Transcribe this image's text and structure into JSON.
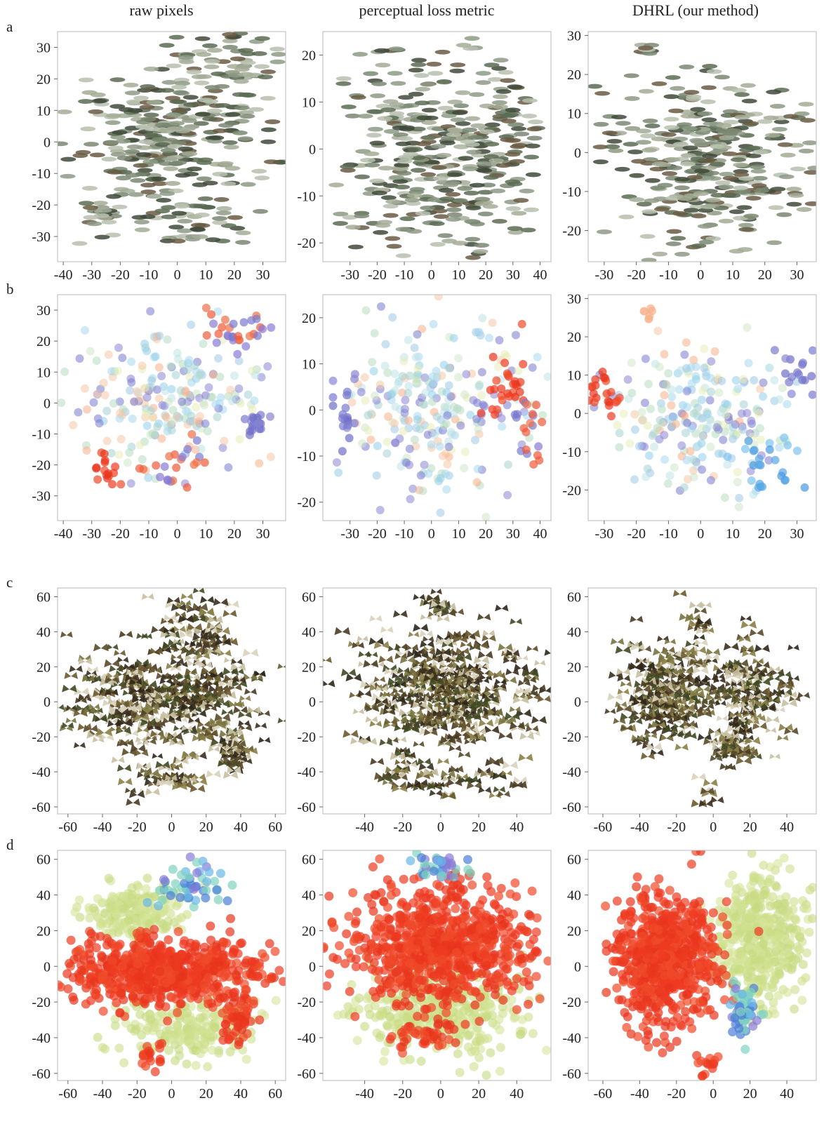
{
  "columns": [
    "raw pixels",
    "perceptual loss metric",
    "DHRL (our method)"
  ],
  "rows": [
    "a",
    "b",
    "c",
    "d"
  ],
  "colors": {
    "accent_red": "#ee3a22",
    "accent_lime": "#cfe08c",
    "accent_purple": "#7a7ad0",
    "accent_teal": "#7fd3c0",
    "accent_blue": "#4a7fd6",
    "image_dark": "#3d3a2a"
  },
  "chart_data": [
    {
      "id": "a1",
      "row": "a",
      "col": 0,
      "type": "scatter",
      "render": "images-fish",
      "xticks": [
        "-40",
        "-30",
        "-20",
        "-10",
        "0",
        "10",
        "20",
        "30"
      ],
      "yticks": [
        "30",
        "20",
        "10",
        "0",
        "-10",
        "-20",
        "-30"
      ],
      "xlim": [
        -42,
        38
      ],
      "ylim": [
        -38,
        35
      ],
      "clusters": [
        {
          "cx": -3,
          "cy": 3,
          "sx": 17,
          "sy": 13,
          "n": 320
        },
        {
          "cx": -25,
          "cy": -22,
          "sx": 4,
          "sy": 3,
          "n": 25
        },
        {
          "cx": 5,
          "cy": -25,
          "sx": 8,
          "sy": 4,
          "n": 40
        },
        {
          "cx": 20,
          "cy": 25,
          "sx": 8,
          "sy": 4,
          "n": 40
        }
      ]
    },
    {
      "id": "a2",
      "row": "a",
      "col": 1,
      "type": "scatter",
      "render": "images-fish",
      "xticks": [
        "-30",
        "-20",
        "-10",
        "0",
        "10",
        "20",
        "30",
        "40"
      ],
      "yticks": [
        "20",
        "10",
        "0",
        "-10",
        "-20"
      ],
      "xlim": [
        -40,
        44
      ],
      "ylim": [
        -24,
        25
      ],
      "clusters": [
        {
          "cx": 0,
          "cy": 0,
          "sx": 17,
          "sy": 11,
          "n": 380
        },
        {
          "cx": 32,
          "cy": 3,
          "sx": 5,
          "sy": 8,
          "n": 40
        }
      ]
    },
    {
      "id": "a3",
      "row": "a",
      "col": 2,
      "type": "scatter",
      "render": "images-fish",
      "xticks": [
        "-30",
        "-20",
        "-10",
        "0",
        "10",
        "20",
        "30"
      ],
      "yticks": [
        "30",
        "20",
        "10",
        "0",
        "-10",
        "-20"
      ],
      "xlim": [
        -35,
        36
      ],
      "ylim": [
        -28,
        31
      ],
      "clusters": [
        {
          "cx": 2,
          "cy": -2,
          "sx": 15,
          "sy": 11,
          "n": 360
        },
        {
          "cx": -16,
          "cy": 27,
          "sx": 1.5,
          "sy": 1.2,
          "n": 8
        }
      ]
    },
    {
      "id": "b1",
      "row": "b",
      "col": 0,
      "type": "scatter",
      "render": "dots",
      "xticks": [
        "-40",
        "-30",
        "-20",
        "-10",
        "0",
        "10",
        "20",
        "30"
      ],
      "yticks": [
        "30",
        "20",
        "10",
        "0",
        "-10",
        "-20",
        "-30"
      ],
      "xlim": [
        -42,
        38
      ],
      "ylim": [
        -38,
        35
      ],
      "clusters": [
        {
          "cx": -2,
          "cy": 2,
          "sx": 16,
          "sy": 11,
          "n": 230,
          "pal": "mix"
        },
        {
          "cx": -25,
          "cy": -22,
          "sx": 3,
          "sy": 2.5,
          "n": 16,
          "pal": "red"
        },
        {
          "cx": 20,
          "cy": 22,
          "sx": 7,
          "sy": 4,
          "n": 30,
          "pal": "redpurple"
        },
        {
          "cx": 28,
          "cy": -6,
          "sx": 3,
          "sy": 3,
          "n": 18,
          "pal": "purple"
        },
        {
          "cx": 0,
          "cy": -22,
          "sx": 5,
          "sy": 4,
          "n": 22,
          "pal": "redpurple"
        }
      ]
    },
    {
      "id": "b2",
      "row": "b",
      "col": 1,
      "type": "scatter",
      "render": "dots",
      "xticks": [
        "-30",
        "-20",
        "-10",
        "0",
        "10",
        "20",
        "30",
        "40"
      ],
      "yticks": [
        "20",
        "10",
        "0",
        "-10",
        "-20"
      ],
      "xlim": [
        -40,
        44
      ],
      "ylim": [
        -24,
        25
      ],
      "clusters": [
        {
          "cx": 0,
          "cy": 0,
          "sx": 17,
          "sy": 10,
          "n": 260,
          "pal": "mix"
        },
        {
          "cx": -32,
          "cy": 0,
          "sx": 2,
          "sy": 4,
          "n": 20,
          "pal": "purple"
        },
        {
          "cx": 28,
          "cy": 5,
          "sx": 4,
          "sy": 4,
          "n": 28,
          "pal": "red"
        },
        {
          "cx": 35,
          "cy": -5,
          "sx": 3,
          "sy": 4,
          "n": 20,
          "pal": "redpurple"
        }
      ]
    },
    {
      "id": "b3",
      "row": "b",
      "col": 2,
      "type": "scatter",
      "render": "dots",
      "xticks": [
        "-30",
        "-20",
        "-10",
        "0",
        "10",
        "20",
        "30"
      ],
      "yticks": [
        "30",
        "20",
        "10",
        "0",
        "-10",
        "-20"
      ],
      "xlim": [
        -35,
        36
      ],
      "ylim": [
        -28,
        31
      ],
      "clusters": [
        {
          "cx": 0,
          "cy": -2,
          "sx": 14,
          "sy": 10,
          "n": 240,
          "pal": "mix"
        },
        {
          "cx": -30,
          "cy": 6,
          "sx": 3,
          "sy": 3,
          "n": 22,
          "pal": "red"
        },
        {
          "cx": -16,
          "cy": 26,
          "sx": 1.2,
          "sy": 1,
          "n": 5,
          "pal": "orange"
        },
        {
          "cx": 20,
          "cy": -13,
          "sx": 6,
          "sy": 4,
          "n": 25,
          "pal": "blue"
        },
        {
          "cx": 30,
          "cy": 10,
          "sx": 3,
          "sy": 3,
          "n": 16,
          "pal": "purple"
        }
      ]
    },
    {
      "id": "c1",
      "row": "c",
      "col": 0,
      "type": "scatter",
      "render": "images-butterfly",
      "xticks": [
        "-60",
        "-40",
        "-20",
        "0",
        "20",
        "40",
        "60"
      ],
      "yticks": [
        "60",
        "40",
        "20",
        "0",
        "-20",
        "-40",
        "-60"
      ],
      "xlim": [
        -66,
        66
      ],
      "ylim": [
        -64,
        65
      ],
      "clusters": [
        {
          "cx": -5,
          "cy": 0,
          "sx": 30,
          "sy": 15,
          "n": 420
        },
        {
          "cx": 15,
          "cy": 40,
          "sx": 10,
          "sy": 10,
          "n": 70
        },
        {
          "cx": 35,
          "cy": -30,
          "sx": 5,
          "sy": 6,
          "n": 40
        },
        {
          "cx": -5,
          "cy": -45,
          "sx": 10,
          "sy": 5,
          "n": 40
        }
      ]
    },
    {
      "id": "c2",
      "row": "c",
      "col": 1,
      "type": "scatter",
      "render": "images-butterfly",
      "xticks": [
        "-40",
        "-20",
        "0",
        "20",
        "40"
      ],
      "yticks": [
        "60",
        "40",
        "20",
        "0",
        "-20",
        "-40",
        "-60"
      ],
      "xlim": [
        -62,
        58
      ],
      "ylim": [
        -64,
        65
      ],
      "clusters": [
        {
          "cx": 0,
          "cy": 5,
          "sx": 25,
          "sy": 18,
          "n": 460
        },
        {
          "cx": 0,
          "cy": 55,
          "sx": 5,
          "sy": 3,
          "n": 20
        },
        {
          "cx": 0,
          "cy": -45,
          "sx": 18,
          "sy": 5,
          "n": 60
        }
      ]
    },
    {
      "id": "c3",
      "row": "c",
      "col": 2,
      "type": "scatter",
      "render": "images-butterfly",
      "xticks": [
        "-60",
        "-40",
        "-20",
        "0",
        "20",
        "40"
      ],
      "yticks": [
        "60",
        "40",
        "20",
        "0",
        "-20",
        "-40",
        "-60"
      ],
      "xlim": [
        -68,
        56
      ],
      "ylim": [
        -64,
        65
      ],
      "clusters": [
        {
          "cx": -25,
          "cy": 5,
          "sx": 14,
          "sy": 15,
          "n": 260
        },
        {
          "cx": 20,
          "cy": 5,
          "sx": 12,
          "sy": 15,
          "n": 160
        },
        {
          "cx": 10,
          "cy": -25,
          "sx": 6,
          "sy": 6,
          "n": 40
        },
        {
          "cx": -8,
          "cy": 45,
          "sx": 3,
          "sy": 6,
          "n": 15
        },
        {
          "cx": -3,
          "cy": -55,
          "sx": 3,
          "sy": 3,
          "n": 8
        }
      ]
    },
    {
      "id": "d1",
      "row": "d",
      "col": 0,
      "type": "scatter",
      "render": "dots",
      "xticks": [
        "-60",
        "-40",
        "-20",
        "0",
        "20",
        "40",
        "60"
      ],
      "yticks": [
        "60",
        "40",
        "20",
        "0",
        "-20",
        "-40",
        "-60"
      ],
      "xlim": [
        -66,
        66
      ],
      "ylim": [
        -64,
        65
      ],
      "clusters": [
        {
          "cx": -20,
          "cy": 30,
          "sx": 14,
          "sy": 8,
          "n": 200,
          "pal": "lime"
        },
        {
          "cx": 10,
          "cy": -35,
          "sx": 20,
          "sy": 8,
          "n": 200,
          "pal": "lime"
        },
        {
          "cx": 10,
          "cy": 45,
          "sx": 8,
          "sy": 8,
          "n": 50,
          "pal": "cool"
        },
        {
          "cx": -5,
          "cy": -3,
          "sx": 28,
          "sy": 9,
          "n": 700,
          "pal": "red"
        },
        {
          "cx": 38,
          "cy": -28,
          "sx": 5,
          "sy": 8,
          "n": 60,
          "pal": "red"
        },
        {
          "cx": -12,
          "cy": -50,
          "sx": 4,
          "sy": 3,
          "n": 20,
          "pal": "red"
        }
      ]
    },
    {
      "id": "d2",
      "row": "d",
      "col": 1,
      "type": "scatter",
      "render": "dots",
      "xticks": [
        "-40",
        "-20",
        "0",
        "20",
        "40"
      ],
      "yticks": [
        "60",
        "40",
        "20",
        "0",
        "-20",
        "-40",
        "-60"
      ],
      "xlim": [
        -62,
        58
      ],
      "ylim": [
        -64,
        65
      ],
      "clusters": [
        {
          "cx": 0,
          "cy": -25,
          "sx": 22,
          "sy": 12,
          "n": 400,
          "pal": "lime"
        },
        {
          "cx": 0,
          "cy": 10,
          "sx": 24,
          "sy": 16,
          "n": 800,
          "pal": "red"
        },
        {
          "cx": 0,
          "cy": 55,
          "sx": 6,
          "sy": 4,
          "n": 40,
          "pal": "cool"
        },
        {
          "cx": -10,
          "cy": -40,
          "sx": 10,
          "sy": 4,
          "n": 40,
          "pal": "red"
        }
      ]
    },
    {
      "id": "d3",
      "row": "d",
      "col": 2,
      "type": "scatter",
      "render": "dots",
      "xticks": [
        "-60",
        "-40",
        "-20",
        "0",
        "20",
        "40"
      ],
      "yticks": [
        "60",
        "40",
        "20",
        "0",
        "-20",
        "-40",
        "-60"
      ],
      "xlim": [
        -68,
        56
      ],
      "ylim": [
        -64,
        65
      ],
      "clusters": [
        {
          "cx": 25,
          "cy": 15,
          "sx": 12,
          "sy": 18,
          "n": 450,
          "pal": "lime"
        },
        {
          "cx": -25,
          "cy": 5,
          "sx": 13,
          "sy": 18,
          "n": 700,
          "pal": "red"
        },
        {
          "cx": 17,
          "cy": -25,
          "sx": 4,
          "sy": 7,
          "n": 60,
          "pal": "cool"
        },
        {
          "cx": -3,
          "cy": -55,
          "sx": 3,
          "sy": 4,
          "n": 15,
          "pal": "red"
        }
      ]
    }
  ]
}
